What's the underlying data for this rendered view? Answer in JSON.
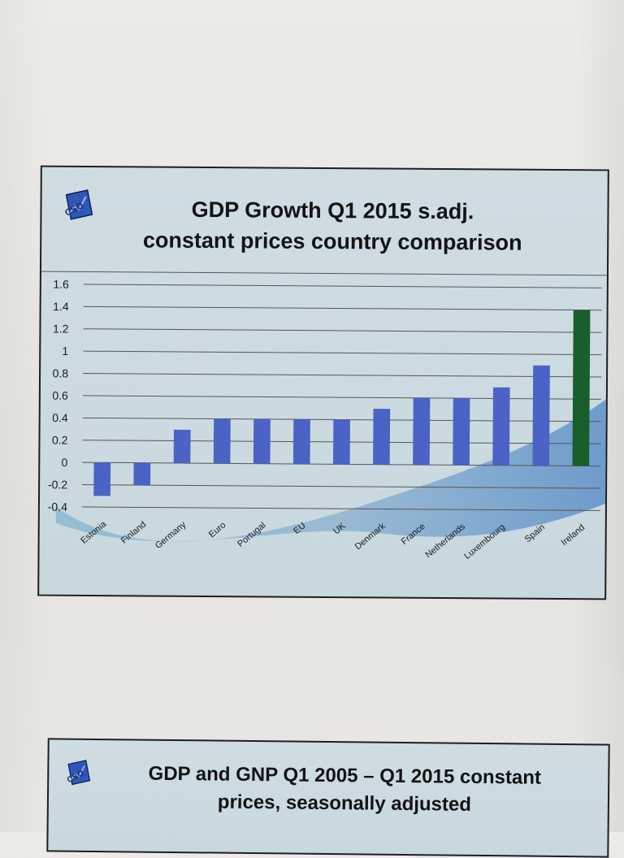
{
  "slide1": {
    "title_line1": "GDP Growth Q1 2015  s.adj.",
    "title_line2": "constant prices country comparison",
    "logo_text": "CSO"
  },
  "slide2": {
    "title_line1": "GDP and GNP Q1 2005 – Q1 2015 constant",
    "title_line2": "prices, seasonally adjusted",
    "logo_text": "CSO"
  },
  "colors": {
    "bar": "#4a63c4",
    "highlight_bar": "#1a5e2c",
    "gridline": "#555555"
  },
  "chart_data": {
    "type": "bar",
    "title": "GDP Growth Q1 2015  s.adj. constant prices country comparison",
    "categories": [
      "Estonia",
      "Finland",
      "Germany",
      "Euro",
      "Portugal",
      "EU",
      "UK",
      "Denmark",
      "France",
      "Netherlands",
      "Luxembourg",
      "Spain",
      "Ireland"
    ],
    "values": [
      -0.3,
      -0.2,
      0.3,
      0.4,
      0.4,
      0.4,
      0.4,
      0.5,
      0.6,
      0.6,
      0.7,
      0.9,
      1.4
    ],
    "highlight": "Ireland",
    "ylim": [
      -0.4,
      1.6
    ],
    "yticks": [
      "1.6",
      "1.4",
      "1.2",
      "1",
      "0.8",
      "0.6",
      "0.4",
      "0.2",
      "0",
      "-0.2",
      "-0.4"
    ],
    "grid": true,
    "xlabel": "",
    "ylabel": ""
  }
}
